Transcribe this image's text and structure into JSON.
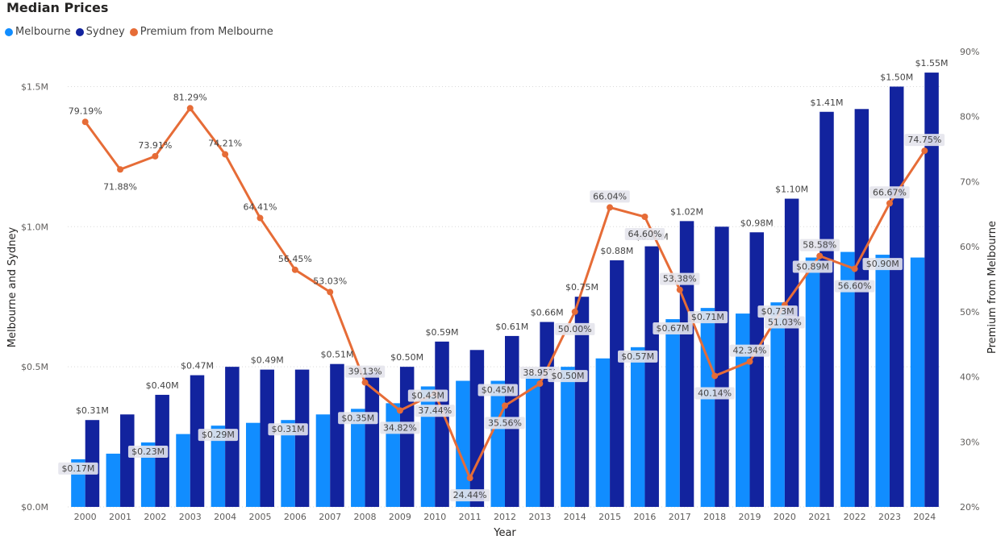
{
  "title": "Median Prices",
  "colors": {
    "melbourne": "#118DFF",
    "sydney": "#12239E",
    "premium": "#E66C37",
    "label_bg": "#e4e4ec"
  },
  "legend": [
    {
      "name": "Melbourne",
      "color": "#118DFF"
    },
    {
      "name": "Sydney",
      "color": "#12239E"
    },
    {
      "name": "Premium from Melbourne",
      "color": "#E66C37"
    }
  ],
  "chart_data": {
    "type": "bar",
    "title": "Median Prices",
    "xlabel": "Year",
    "ylabel": "Melbourne and Sydney",
    "y2label": "Premium from Melbourne",
    "ylim": [
      0,
      1.625
    ],
    "y2lim": [
      20,
      90
    ],
    "yticks": [
      {
        "value": 0,
        "label": "$0.0M"
      },
      {
        "value": 0.5,
        "label": "$0.5M"
      },
      {
        "value": 1.0,
        "label": "$1.0M"
      },
      {
        "value": 1.5,
        "label": "$1.5M"
      }
    ],
    "y2ticks": [
      {
        "value": 20,
        "label": "20%"
      },
      {
        "value": 30,
        "label": "30%"
      },
      {
        "value": 40,
        "label": "40%"
      },
      {
        "value": 50,
        "label": "50%"
      },
      {
        "value": 60,
        "label": "60%"
      },
      {
        "value": 70,
        "label": "70%"
      },
      {
        "value": 80,
        "label": "80%"
      },
      {
        "value": 90,
        "label": "90%"
      }
    ],
    "grid": true,
    "legend_position": "top-left",
    "categories": [
      "2000",
      "2001",
      "2002",
      "2003",
      "2004",
      "2005",
      "2006",
      "2007",
      "2008",
      "2009",
      "2010",
      "2011",
      "2012",
      "2013",
      "2014",
      "2015",
      "2016",
      "2017",
      "2018",
      "2019",
      "2020",
      "2021",
      "2022",
      "2023",
      "2024"
    ],
    "series": [
      {
        "name": "Melbourne",
        "type": "bar",
        "values": [
          0.17,
          0.19,
          0.23,
          0.26,
          0.29,
          0.3,
          0.31,
          0.33,
          0.35,
          0.37,
          0.43,
          0.45,
          0.45,
          0.47,
          0.5,
          0.53,
          0.57,
          0.67,
          0.71,
          0.69,
          0.73,
          0.89,
          0.91,
          0.9,
          0.89
        ],
        "labels": [
          "$0.17M",
          "",
          "$0.23M",
          "",
          "$0.29M",
          "",
          "$0.31M",
          "",
          "$0.35M",
          "",
          "$0.43M",
          "",
          "$0.45M",
          "",
          "$0.50M",
          "",
          "$0.57M",
          "$0.67M",
          "$0.71M",
          "",
          "$0.73M",
          "$0.89M",
          "",
          "$0.90M",
          ""
        ]
      },
      {
        "name": "Sydney",
        "type": "bar",
        "values": [
          0.31,
          0.33,
          0.4,
          0.47,
          0.5,
          0.49,
          0.49,
          0.51,
          0.48,
          0.5,
          0.59,
          0.56,
          0.61,
          0.66,
          0.75,
          0.88,
          0.93,
          1.02,
          1.0,
          0.98,
          1.1,
          1.41,
          1.42,
          1.5,
          1.55
        ],
        "labels": [
          "$0.31M",
          "",
          "$0.40M",
          "$0.47M",
          "",
          "$0.49M",
          "",
          "$0.51M",
          "",
          "$0.50M",
          "$0.59M",
          "",
          "$0.61M",
          "$0.66M",
          "$0.75M",
          "$0.88M",
          "$0.93M",
          "$1.02M",
          "",
          "$0.98M",
          "$1.10M",
          "$1.41M",
          "",
          "$1.50M",
          "$1.55M"
        ]
      },
      {
        "name": "Premium from Melbourne",
        "type": "line",
        "axis": "secondary",
        "values": [
          79.19,
          71.88,
          73.91,
          81.29,
          74.21,
          64.41,
          56.45,
          53.03,
          39.13,
          34.82,
          37.44,
          24.44,
          35.56,
          38.95,
          50.0,
          66.04,
          64.6,
          53.38,
          40.14,
          42.34,
          51.03,
          58.58,
          56.6,
          66.67,
          74.75
        ],
        "labels": [
          "79.19%",
          "71.88%",
          "73.91%",
          "81.29%",
          "74.21%",
          "64.41%",
          "56.45%",
          "53.03%",
          "39.13%",
          "34.82%",
          "37.44%",
          "24.44%",
          "35.56%",
          "38.95%",
          "50.00%",
          "66.04%",
          "64.60%",
          "53.38%",
          "40.14%",
          "42.34%",
          "51.03%",
          "58.58%",
          "56.60%",
          "66.67%",
          "74.75%"
        ]
      }
    ]
  }
}
